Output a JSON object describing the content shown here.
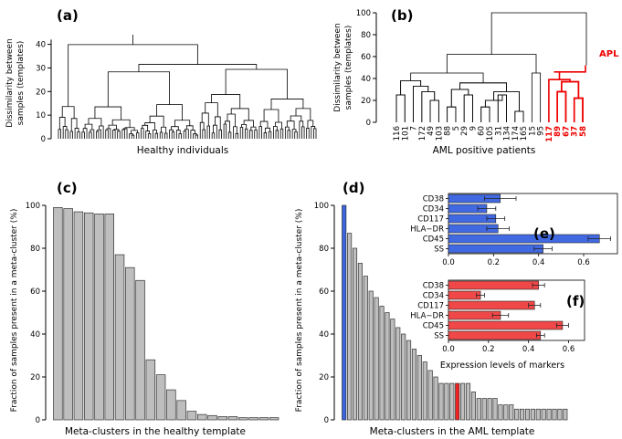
{
  "chart_data": [
    {
      "panel": "a",
      "type": "dendrogram",
      "panel_label": "(a)",
      "ylabel": "Dissimilarity between samples (templates)",
      "ylabel_lines": [
        "Dissimilarity between",
        "samples (templates)"
      ],
      "xlabel": "Healthy individuals",
      "ylim": [
        0,
        42
      ],
      "yticks": [
        0,
        10,
        20,
        30,
        40
      ],
      "root_height": 42,
      "leaf_count": 110
    },
    {
      "panel": "b",
      "type": "dendrogram",
      "panel_label": "(b)",
      "ylabel": "Dissimilarity between samples (templates)",
      "ylabel_lines": [
        "Dissimilarity between",
        "samples (templates)"
      ],
      "xlabel": "AML positive patients",
      "ylim": [
        0,
        100
      ],
      "yticks": [
        0,
        20,
        40,
        60,
        80,
        100
      ],
      "leaves": [
        "116",
        "101",
        "7",
        "172",
        "49",
        "103",
        "88",
        "5",
        "29",
        "9",
        "60",
        "105",
        "31",
        "134",
        "174",
        "165",
        "15",
        "95",
        "117",
        "89",
        "67",
        "37",
        "58"
      ],
      "highlight_leaves": [
        "117",
        "89",
        "67",
        "37",
        "58"
      ],
      "highlight_label": "APL",
      "highlight_color": "#ee0000"
    },
    {
      "panel": "c",
      "type": "bar",
      "panel_label": "(c)",
      "ylabel": "Fraction of samples present  in a meta-cluster (%)",
      "xlabel": "Meta-clusters in the healthy template",
      "ylim": [
        0,
        100
      ],
      "yticks": [
        0,
        20,
        40,
        60,
        80,
        100
      ],
      "values": [
        99,
        98.5,
        97,
        96.5,
        96,
        96,
        77,
        71,
        65,
        28,
        21,
        14,
        9,
        4,
        2.5,
        2,
        1.5,
        1.5,
        1,
        1,
        1,
        1
      ],
      "bar_color": "#bebebe"
    },
    {
      "panel": "d",
      "type": "bar",
      "panel_label": "(d)",
      "ylabel": "Fraction of samples present  in a meta-cluster (%)",
      "xlabel": "Meta-clusters in the AML template",
      "ylim": [
        0,
        100
      ],
      "yticks": [
        0,
        20,
        40,
        60,
        80,
        100
      ],
      "values": [
        100,
        87,
        80,
        73,
        67,
        60,
        57,
        53,
        50,
        47,
        43,
        40,
        37,
        33,
        30,
        27,
        23,
        20,
        17,
        17,
        17,
        17,
        17,
        17,
        13,
        10,
        10,
        10,
        10,
        7,
        7,
        7,
        5,
        5,
        5,
        5,
        5,
        5,
        5,
        5,
        5,
        5
      ],
      "bar_color": "#bebebe",
      "highlights": [
        {
          "index": 0,
          "color": "#3a63e0"
        },
        {
          "index": 21,
          "color": "#ee2222"
        }
      ]
    },
    {
      "panel": "e",
      "type": "hbar",
      "panel_label": "(e)",
      "categories": [
        "CD38",
        "CD34",
        "CD117",
        "HLA−DR",
        "CD45",
        "SS"
      ],
      "values": [
        0.23,
        0.17,
        0.21,
        0.22,
        0.67,
        0.42
      ],
      "errors": [
        0.07,
        0.04,
        0.04,
        0.05,
        0.05,
        0.04
      ],
      "xlim": [
        0,
        0.75
      ],
      "xticks": [
        "0.0",
        "0.2",
        "0.4",
        "0.6"
      ],
      "bar_color": "#4169e1"
    },
    {
      "panel": "f",
      "type": "hbar",
      "panel_label": "(f)",
      "categories": [
        "CD38",
        "CD34",
        "CD117",
        "HLA−DR",
        "CD45",
        "SS"
      ],
      "values": [
        0.45,
        0.16,
        0.43,
        0.26,
        0.57,
        0.46
      ],
      "errors": [
        0.03,
        0.02,
        0.03,
        0.04,
        0.03,
        0.02
      ],
      "xlim": [
        0,
        0.68
      ],
      "xticks": [
        "0.0",
        "0.2",
        "0.4",
        "0.6"
      ],
      "xlabel": "Expression levels of markers",
      "bar_color": "#f04848"
    }
  ]
}
